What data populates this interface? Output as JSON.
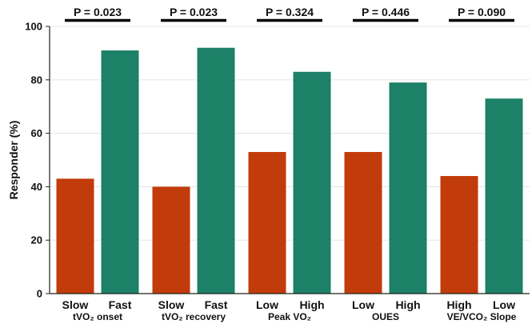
{
  "chart_data": {
    "type": "bar",
    "ylabel": "Responder (%)",
    "ylim": [
      0,
      100
    ],
    "yticks": [
      "0",
      "20",
      "40",
      "60",
      "80",
      "100"
    ],
    "grid": true,
    "legend": "none",
    "colors": {
      "low": "#c23b0a",
      "high": "#1d8168",
      "axis": "#222222",
      "grid": "#e6e6e6"
    },
    "groups": [
      {
        "label": "tVO₂ onset",
        "p_value": "P = 0.023",
        "bars": [
          {
            "label": "Slow",
            "value": 43,
            "color": "low"
          },
          {
            "label": "Fast",
            "value": 91,
            "color": "high"
          }
        ]
      },
      {
        "label": "tVO₂ recovery",
        "p_value": "P = 0.023",
        "bars": [
          {
            "label": "Slow",
            "value": 40,
            "color": "low"
          },
          {
            "label": "Fast",
            "value": 92,
            "color": "high"
          }
        ]
      },
      {
        "label": "Peak VO₂",
        "p_value": "P = 0.324",
        "bars": [
          {
            "label": "Low",
            "value": 53,
            "color": "low"
          },
          {
            "label": "High",
            "value": 83,
            "color": "high"
          }
        ]
      },
      {
        "label": "OUES",
        "p_value": "P = 0.446",
        "bars": [
          {
            "label": "Low",
            "value": 53,
            "color": "low"
          },
          {
            "label": "High",
            "value": 79,
            "color": "high"
          }
        ]
      },
      {
        "label": "VE/VCO₂ Slope",
        "p_value": "P = 0.090",
        "bars": [
          {
            "label": "High",
            "value": 44,
            "color": "low"
          },
          {
            "label": "Low",
            "value": 73,
            "color": "high"
          }
        ]
      }
    ]
  }
}
